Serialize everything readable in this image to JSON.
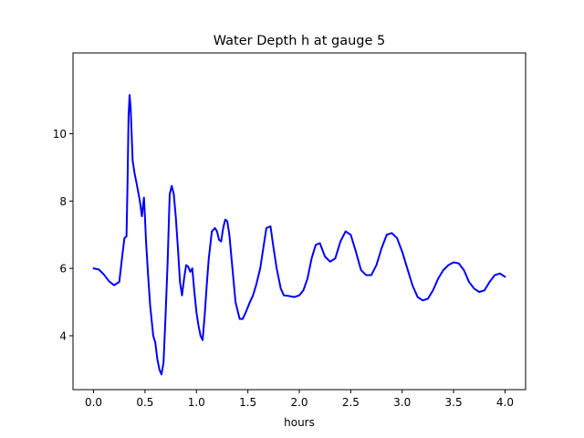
{
  "chart_data": {
    "type": "line",
    "title": "Water Depth h at gauge 5",
    "xlabel": "hours",
    "ylabel": "",
    "xlim": [
      -0.2,
      4.2
    ],
    "ylim": [
      2.4,
      12.4
    ],
    "xticks": [
      0.0,
      0.5,
      1.0,
      1.5,
      2.0,
      2.5,
      3.0,
      3.5,
      4.0
    ],
    "xtick_labels": [
      "0.0",
      "0.5",
      "1.0",
      "1.5",
      "2.0",
      "2.5",
      "3.0",
      "3.5",
      "4.0"
    ],
    "yticks": [
      4,
      6,
      8,
      10
    ],
    "ytick_labels": [
      "4",
      "6",
      "8",
      "10"
    ],
    "grid": false,
    "series": [
      {
        "color": "#0000ff",
        "x": [
          0.0,
          0.05,
          0.1,
          0.15,
          0.2,
          0.25,
          0.28,
          0.3,
          0.32,
          0.33,
          0.34,
          0.35,
          0.36,
          0.37,
          0.38,
          0.4,
          0.42,
          0.45,
          0.47,
          0.48,
          0.49,
          0.5,
          0.51,
          0.53,
          0.55,
          0.58,
          0.6,
          0.62,
          0.64,
          0.66,
          0.68,
          0.7,
          0.72,
          0.74,
          0.76,
          0.78,
          0.8,
          0.82,
          0.84,
          0.86,
          0.88,
          0.9,
          0.92,
          0.94,
          0.96,
          0.98,
          1.0,
          1.02,
          1.04,
          1.06,
          1.08,
          1.1,
          1.12,
          1.15,
          1.18,
          1.2,
          1.22,
          1.24,
          1.26,
          1.28,
          1.3,
          1.32,
          1.35,
          1.38,
          1.42,
          1.45,
          1.48,
          1.52,
          1.55,
          1.58,
          1.62,
          1.65,
          1.68,
          1.72,
          1.75,
          1.78,
          1.82,
          1.85,
          1.9,
          1.95,
          2.0,
          2.04,
          2.08,
          2.12,
          2.16,
          2.2,
          2.25,
          2.3,
          2.35,
          2.4,
          2.45,
          2.5,
          2.55,
          2.6,
          2.65,
          2.7,
          2.75,
          2.8,
          2.85,
          2.9,
          2.95,
          3.0,
          3.05,
          3.1,
          3.15,
          3.2,
          3.25,
          3.3,
          3.35,
          3.4,
          3.45,
          3.5,
          3.55,
          3.6,
          3.65,
          3.7,
          3.75,
          3.8,
          3.85,
          3.9,
          3.95,
          4.0
        ],
        "y": [
          6.0,
          5.97,
          5.82,
          5.62,
          5.5,
          5.6,
          6.4,
          6.9,
          6.95,
          8.5,
          10.5,
          11.15,
          10.8,
          10.0,
          9.2,
          8.8,
          8.5,
          8.0,
          7.55,
          7.85,
          8.1,
          7.5,
          6.8,
          5.8,
          4.9,
          4.0,
          3.8,
          3.3,
          3.0,
          2.85,
          3.2,
          4.6,
          6.2,
          8.2,
          8.45,
          8.2,
          7.5,
          6.6,
          5.6,
          5.2,
          5.7,
          6.1,
          6.05,
          5.9,
          6.0,
          5.3,
          4.7,
          4.3,
          4.0,
          3.87,
          4.6,
          5.5,
          6.3,
          7.1,
          7.2,
          7.1,
          6.85,
          6.8,
          7.2,
          7.45,
          7.4,
          7.0,
          6.0,
          5.0,
          4.5,
          4.5,
          4.7,
          5.0,
          5.2,
          5.5,
          6.0,
          6.6,
          7.2,
          7.25,
          6.6,
          6.0,
          5.4,
          5.2,
          5.18,
          5.15,
          5.2,
          5.35,
          5.7,
          6.3,
          6.7,
          6.75,
          6.35,
          6.2,
          6.3,
          6.8,
          7.1,
          7.0,
          6.5,
          5.95,
          5.8,
          5.8,
          6.1,
          6.6,
          7.0,
          7.05,
          6.9,
          6.5,
          6.0,
          5.5,
          5.15,
          5.05,
          5.1,
          5.35,
          5.7,
          5.95,
          6.1,
          6.18,
          6.15,
          5.95,
          5.6,
          5.4,
          5.3,
          5.35,
          5.6,
          5.8,
          5.85,
          5.75
        ]
      }
    ]
  }
}
